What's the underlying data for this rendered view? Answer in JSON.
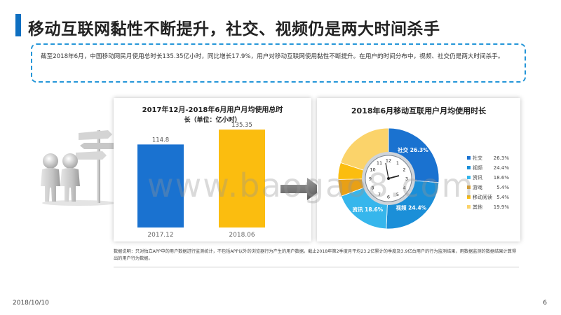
{
  "header": {
    "title": "移动互联网黏性不断提升，社交、视频仍是两大时间杀手"
  },
  "summary": {
    "text": "截至2018年6月，中国移动网民月使用总时长135.35亿小时，同比增长17.9%，用户对移动互联网使用黏性不断提升。在用户的时间分布中，视频、社交仍是两大时间杀手。"
  },
  "chart_data": [
    {
      "type": "bar",
      "title": "2017年12月-2018年6月用户月均使用总时",
      "subtitle": "长（单位：亿小时）",
      "categories": [
        "2017.12",
        "2018.06"
      ],
      "values": [
        114.8,
        135.35
      ],
      "value_labels": [
        "114.8",
        "135.35"
      ],
      "colors": [
        "#1a72d0",
        "#fbbd0f"
      ],
      "ylim": [
        0,
        150
      ]
    },
    {
      "type": "pie",
      "title": "2018年6月移动互联用户月均使用时长",
      "categories": [
        "社交",
        "视频",
        "资讯",
        "游戏",
        "移动阅读",
        "其他"
      ],
      "values": [
        26.3,
        24.4,
        18.6,
        5.4,
        5.4,
        19.9
      ],
      "value_labels": [
        "26.3%",
        "24.4%",
        "18.6%",
        "5.4%",
        "5.4%",
        "19.9%"
      ],
      "colors": [
        "#1a72d0",
        "#1b8fd8",
        "#36b6ec",
        "#e8a016",
        "#fbbd0f",
        "#fbd36a"
      ],
      "legend_position": "right",
      "slice_labels": [
        {
          "name": "社交",
          "value": "26.3%"
        },
        {
          "name": "视频",
          "value": "24.4%"
        },
        {
          "name": "资讯",
          "value": "18.6%"
        }
      ]
    }
  ],
  "footnote": {
    "text": "数据说明：只对独立APP中的用户数据进行监测统计，不包括APP以外的浏览器行为产生的用户数据。截止2018年第2季度月平均23.2亿累计的季度及3.9亿台用户的行为监测结果，用数据监测的数据结果计算得出的用户行为数据。"
  },
  "watermark": {
    "text": "www.baogao8.com"
  },
  "footer": {
    "date": "2018/10/10",
    "page": "6"
  }
}
